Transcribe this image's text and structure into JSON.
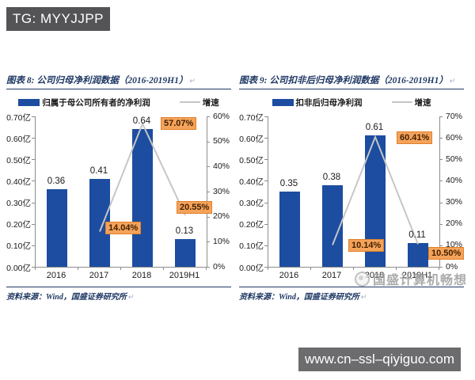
{
  "header": {
    "badge": "TG: MYYJJPP"
  },
  "footer": {
    "url": "www.cn–ssl–qiyiguo.com"
  },
  "watermark": {
    "text": "国盛计算机畅想"
  },
  "decorations": {
    "return_mark": "↵"
  },
  "colors": {
    "bar": "#1c4da0",
    "growth_line": "#c6c6c6",
    "callout_bg": "#f5a35a",
    "callout_border": "#e0802a",
    "callout_text": "#3f1f00",
    "navy": "#1f3864",
    "header_bg": "#545456",
    "footer_bg": "#6c6c6e"
  },
  "chart_data": [
    {
      "type": "bar+line",
      "title": "图表 8: 公司归母净利润数据（2016-2019H1）",
      "source": "资料来源：Wind，国盛证券研究所",
      "categories": [
        "2016",
        "2017",
        "2018",
        "2019H1"
      ],
      "series": [
        {
          "name": "归属于母公司所有者的净利润",
          "type": "bar",
          "axis": "left",
          "values": [
            0.36,
            0.41,
            0.64,
            0.13
          ]
        },
        {
          "name": "增速",
          "type": "line",
          "axis": "right",
          "values": [
            null,
            14.04,
            57.07,
            20.55
          ],
          "point_labels": [
            "",
            "14.04%",
            "57.07%",
            "20.55%"
          ]
        }
      ],
      "left_axis": {
        "min": 0,
        "max": 0.7,
        "step": 0.1,
        "suffix": "亿",
        "decimals": 2
      },
      "right_axis": {
        "min": 0,
        "max": 60,
        "step": 10,
        "suffix": "%"
      },
      "legend_position": "top",
      "grid": false
    },
    {
      "type": "bar+line",
      "title": "图表 9: 公司扣非后归母净利润数据（2016-2019H1）",
      "source": "资料来源：Wind，国盛证券研究所",
      "categories": [
        "2016",
        "2017",
        "2018",
        "2019H1"
      ],
      "series": [
        {
          "name": "扣非后归母净利润",
          "type": "bar",
          "axis": "left",
          "values": [
            0.35,
            0.38,
            0.61,
            0.11
          ]
        },
        {
          "name": "增速",
          "type": "line",
          "axis": "right",
          "values": [
            null,
            10.14,
            60.41,
            10.5
          ],
          "point_labels": [
            "",
            "10.14%",
            "60.41%",
            "10.50%"
          ]
        }
      ],
      "left_axis": {
        "min": 0,
        "max": 0.7,
        "step": 0.1,
        "suffix": "亿",
        "decimals": 2
      },
      "right_axis": {
        "min": 0,
        "max": 70,
        "step": 10,
        "suffix": "%"
      },
      "legend_position": "top",
      "grid": false
    }
  ]
}
